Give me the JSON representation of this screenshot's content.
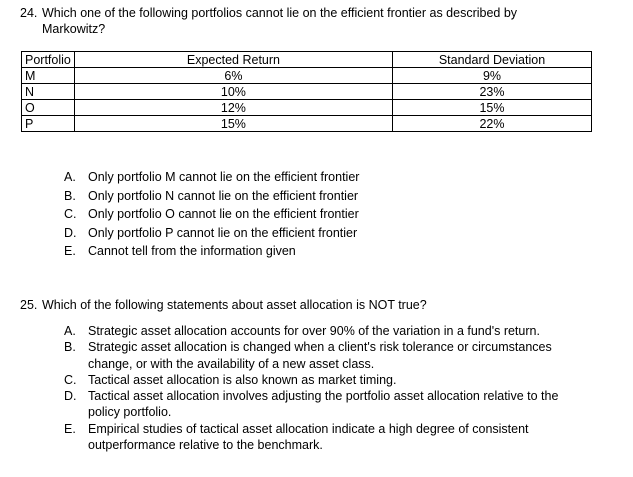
{
  "q24": {
    "number": "24.",
    "stem": "Which one of the following portfolios cannot lie on the efficient frontier as described by Markowitz?",
    "table": {
      "headers": [
        "Portfolio",
        "Expected Return",
        "Standard Deviation"
      ],
      "rows": [
        [
          "M",
          "6%",
          "9%"
        ],
        [
          "N",
          "10%",
          "23%"
        ],
        [
          "O",
          "12%",
          "15%"
        ],
        [
          "P",
          "15%",
          "22%"
        ]
      ]
    },
    "options": [
      {
        "letter": "A.",
        "text": "Only portfolio M cannot lie on the efficient frontier"
      },
      {
        "letter": "B.",
        "text": "Only portfolio N cannot lie on the efficient frontier"
      },
      {
        "letter": "C.",
        "text": "Only portfolio O cannot lie on the efficient frontier"
      },
      {
        "letter": "D.",
        "text": "Only portfolio P cannot lie on the efficient frontier"
      },
      {
        "letter": "E.",
        "text": "Cannot tell from the information given"
      }
    ]
  },
  "q25": {
    "number": "25.",
    "stem": "Which of the following statements about asset allocation is NOT true?",
    "options": [
      {
        "letter": "A.",
        "text": "Strategic asset allocation accounts for over 90% of the variation in a fund's return."
      },
      {
        "letter": "B.",
        "text": "Strategic asset allocation is changed when a client's risk tolerance or circumstances change, or with the availability of a new asset class."
      },
      {
        "letter": "C.",
        "text": "Tactical asset allocation is also known as market timing."
      },
      {
        "letter": "D.",
        "text": "Tactical asset allocation involves adjusting the portfolio asset allocation relative to the policy portfolio."
      },
      {
        "letter": "E.",
        "text": "Empirical studies of tactical asset allocation indicate a high degree of consistent outperformance relative to the benchmark."
      }
    ]
  }
}
